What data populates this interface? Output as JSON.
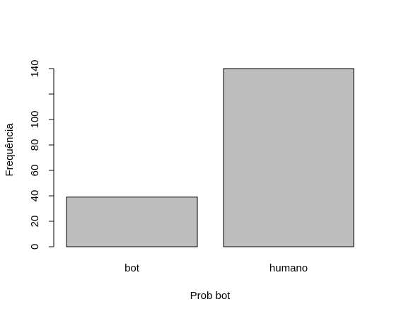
{
  "chart_data": {
    "type": "bar",
    "title": "",
    "xlabel": "Prob bot",
    "ylabel": "Frequência",
    "categories": [
      "bot",
      "humano"
    ],
    "values": [
      39,
      140
    ],
    "ylim": [
      0,
      140
    ],
    "y_tick_values": [
      0,
      20,
      40,
      60,
      80,
      100,
      120,
      140
    ],
    "y_tick_labels": [
      "0",
      "20",
      "40",
      "60",
      "80",
      "100",
      "",
      "140"
    ],
    "grid": false,
    "legend": "none",
    "colors": {
      "bar_fill": "#bebebe",
      "bar_stroke": "#000000",
      "axis": "#000000",
      "background": "#ffffff"
    }
  }
}
